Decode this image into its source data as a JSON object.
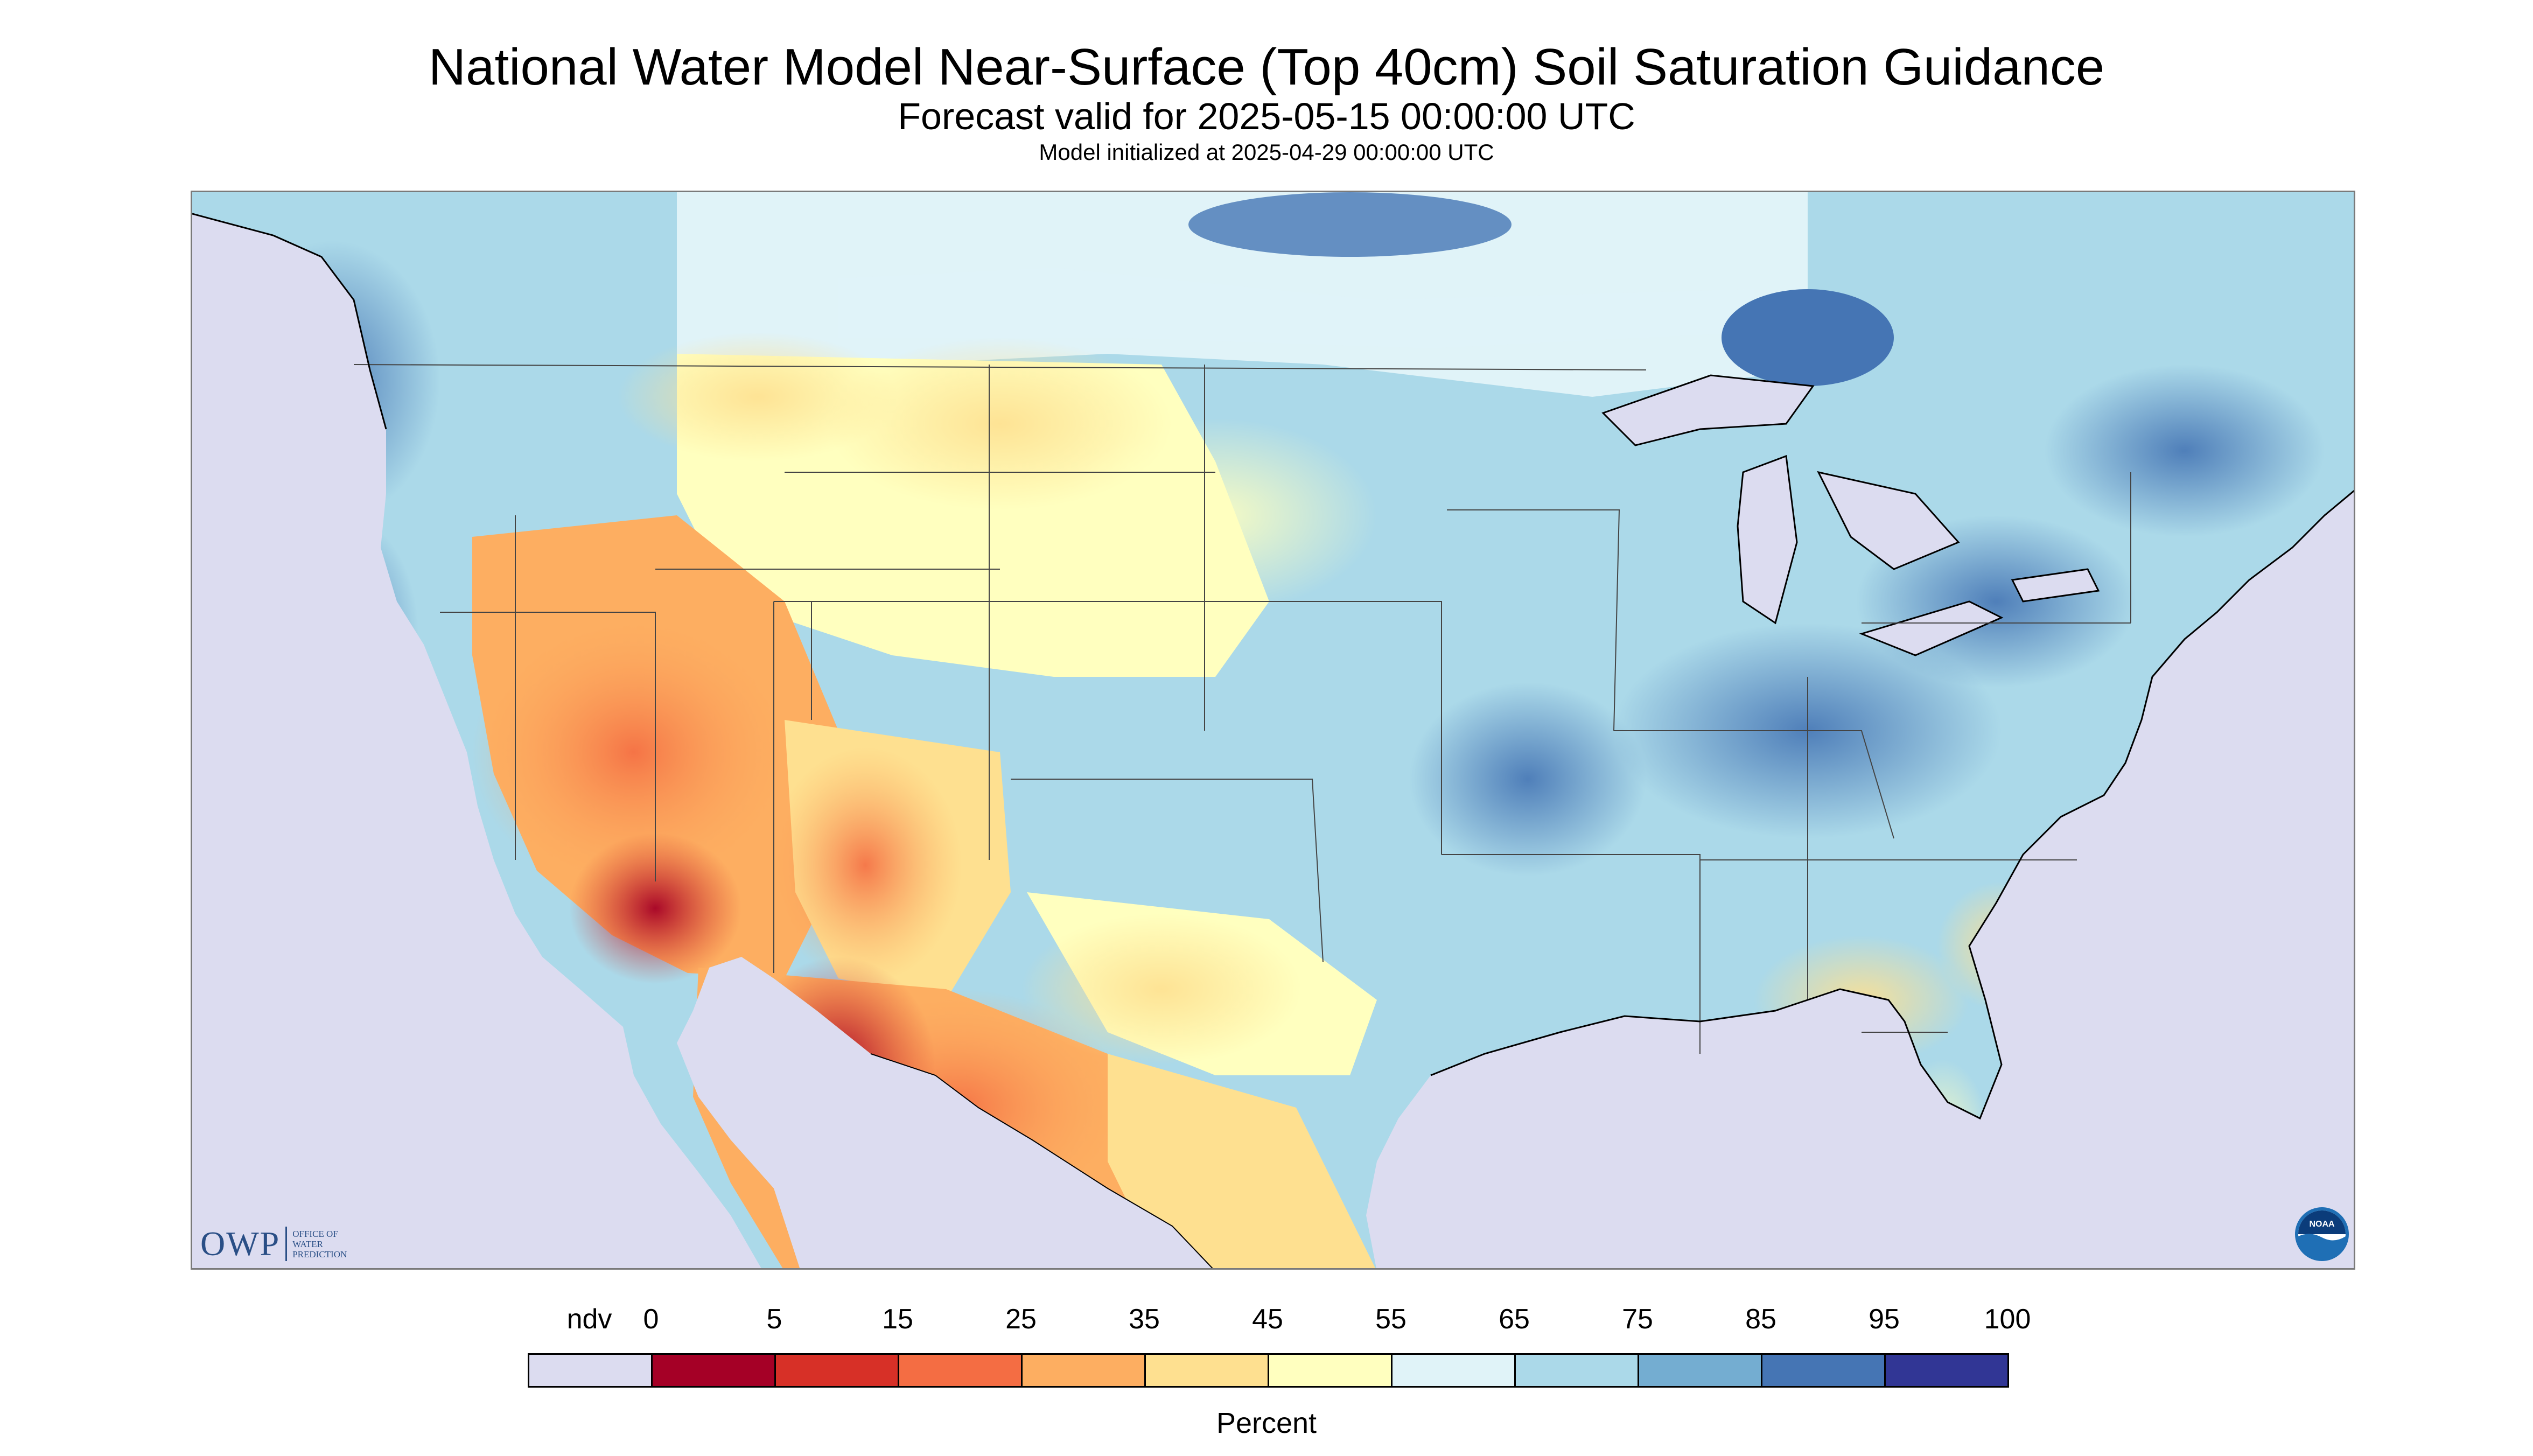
{
  "header": {
    "title": "National Water Model Near-Surface (Top 40cm) Soil Saturation Guidance",
    "subtitle": "Forecast valid for 2025-05-15 00:00:00 UTC",
    "init": "Model initialized at 2025-04-29 00:00:00 UTC"
  },
  "logos": {
    "owp": {
      "letters": "OWP",
      "line1": "OFFICE OF",
      "line2": "WATER",
      "line3": "PREDICTION"
    },
    "noaa": {
      "text": "NOAA"
    }
  },
  "legend": {
    "title": "Percent",
    "items": [
      {
        "label": "ndv",
        "color": "#dcdcf0"
      },
      {
        "label": "0",
        "color": "#a50026"
      },
      {
        "label": "5",
        "color": "#d73027"
      },
      {
        "label": "15",
        "color": "#f46d43"
      },
      {
        "label": "25",
        "color": "#fdae61"
      },
      {
        "label": "35",
        "color": "#fee090"
      },
      {
        "label": "45",
        "color": "#ffffbf"
      },
      {
        "label": "55",
        "color": "#e0f3f8"
      },
      {
        "label": "65",
        "color": "#abd9e9"
      },
      {
        "label": "75",
        "color": "#74add1"
      },
      {
        "label": "85",
        "color": "#4575b4"
      },
      {
        "label": "95",
        "color": "#313695"
      },
      {
        "label": "100",
        "color": ""
      }
    ]
  },
  "map": {
    "colors": {
      "nodata": "#dcdcf0",
      "water": "#dcdcf0",
      "outline": "#444444",
      "coast": "#000000"
    }
  }
}
